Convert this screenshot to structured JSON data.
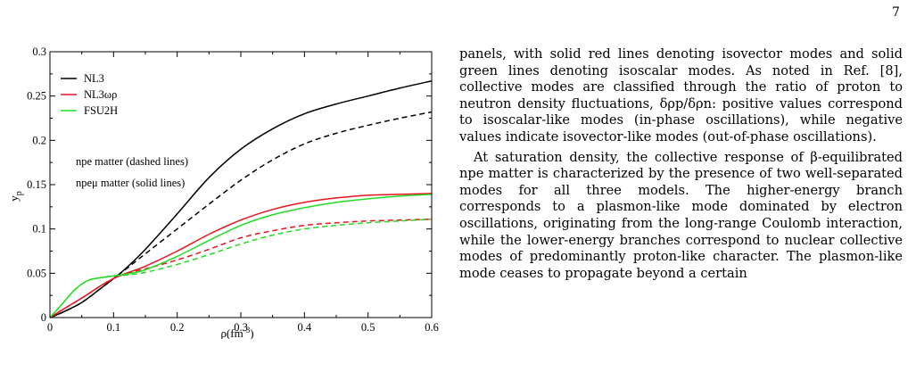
{
  "page_number": "7",
  "body_text": {
    "paragraph_1": "panels, with solid red lines denoting isovector modes and solid green lines denoting isoscalar modes. As noted in Ref. [8], collective modes are classified through the ratio of proton to neutron density fluctuations, δρp/δρn: positive values correspond to isoscalar-like modes (in-phase oscillations), while negative values indicate isovector-like modes (out-of-phase oscillations).",
    "paragraph_2": "At saturation density, the collective response of β-equilibrated npe matter is characterized by the presence of two well-separated modes for all three models. The higher-energy branch corresponds to a plasmon-like mode dominated by electron oscillations, originating from the long-range Coulomb interaction, while the lower-energy branches correspond to nuclear collective modes of predominantly proton-like character. The plasmon-like mode ceases to propagate beyond a certain"
  },
  "chart_data": {
    "type": "line",
    "xlabel": "ρ(fm⁻³)",
    "ylabel": "yp",
    "xlim": [
      0,
      0.6
    ],
    "ylim": [
      0,
      0.3
    ],
    "xticks": [
      "0",
      "0.1",
      "0.2",
      "0.3",
      "0.4",
      "0.5",
      "0.6"
    ],
    "yticks": [
      "0",
      "0.05",
      "0.1",
      "0.15",
      "0.2",
      "0.25",
      "0.3"
    ],
    "grid": false,
    "legend_position": "top-left",
    "legend": [
      {
        "label": "NL3",
        "color": "#000000"
      },
      {
        "label": "NL3ωρ",
        "color": "#e8141c"
      },
      {
        "label": "FSU2H",
        "color": "#22dd22"
      }
    ],
    "annotations": [
      "npe matter (dashed lines)",
      "npeμ matter (solid lines)"
    ],
    "series": [
      {
        "model": "NL3",
        "matter": "npeμ",
        "color": "#000000",
        "dashed": false,
        "x": [
          0,
          0.02,
          0.05,
          0.08,
          0.1,
          0.12,
          0.15,
          0.2,
          0.25,
          0.3,
          0.35,
          0.4,
          0.45,
          0.5,
          0.55,
          0.6
        ],
        "y": [
          0,
          0.006,
          0.017,
          0.033,
          0.044,
          0.056,
          0.077,
          0.117,
          0.158,
          0.19,
          0.213,
          0.23,
          0.241,
          0.25,
          0.259,
          0.267
        ]
      },
      {
        "model": "NL3",
        "matter": "npe",
        "color": "#000000",
        "dashed": true,
        "x": [
          0,
          0.02,
          0.05,
          0.08,
          0.1,
          0.12,
          0.15,
          0.2,
          0.25,
          0.3,
          0.35,
          0.4,
          0.45,
          0.5,
          0.55,
          0.6
        ],
        "y": [
          0,
          0.006,
          0.017,
          0.033,
          0.044,
          0.055,
          0.072,
          0.1,
          0.128,
          0.155,
          0.178,
          0.196,
          0.208,
          0.217,
          0.225,
          0.232
        ]
      },
      {
        "model": "NL3ωρ",
        "matter": "npeμ",
        "color": "#e8141c",
        "dashed": false,
        "x": [
          0,
          0.02,
          0.05,
          0.08,
          0.1,
          0.12,
          0.15,
          0.2,
          0.25,
          0.3,
          0.35,
          0.4,
          0.45,
          0.5,
          0.55,
          0.6
        ],
        "y": [
          0,
          0.009,
          0.022,
          0.036,
          0.044,
          0.05,
          0.058,
          0.075,
          0.094,
          0.11,
          0.122,
          0.13,
          0.135,
          0.138,
          0.139,
          0.14
        ]
      },
      {
        "model": "NL3ωρ",
        "matter": "npe",
        "color": "#e8141c",
        "dashed": true,
        "x": [
          0,
          0.02,
          0.05,
          0.08,
          0.1,
          0.12,
          0.15,
          0.2,
          0.25,
          0.3,
          0.35,
          0.4,
          0.45,
          0.5,
          0.55,
          0.6
        ],
        "y": [
          0,
          0.009,
          0.022,
          0.036,
          0.044,
          0.05,
          0.055,
          0.065,
          0.077,
          0.09,
          0.098,
          0.104,
          0.107,
          0.109,
          0.11,
          0.111
        ]
      },
      {
        "model": "FSU2H",
        "matter": "npeμ",
        "color": "#22dd22",
        "dashed": false,
        "x": [
          0,
          0.02,
          0.04,
          0.06,
          0.08,
          0.1,
          0.12,
          0.15,
          0.2,
          0.25,
          0.3,
          0.35,
          0.4,
          0.45,
          0.5,
          0.55,
          0.6
        ],
        "y": [
          0,
          0.016,
          0.032,
          0.042,
          0.045,
          0.047,
          0.049,
          0.054,
          0.069,
          0.087,
          0.104,
          0.116,
          0.124,
          0.13,
          0.134,
          0.137,
          0.139
        ]
      },
      {
        "model": "FSU2H",
        "matter": "npe",
        "color": "#22dd22",
        "dashed": true,
        "x": [
          0,
          0.02,
          0.04,
          0.06,
          0.08,
          0.1,
          0.12,
          0.15,
          0.2,
          0.25,
          0.3,
          0.35,
          0.4,
          0.45,
          0.5,
          0.55,
          0.6
        ],
        "y": [
          0,
          0.016,
          0.032,
          0.042,
          0.045,
          0.047,
          0.048,
          0.051,
          0.06,
          0.071,
          0.083,
          0.093,
          0.1,
          0.104,
          0.107,
          0.109,
          0.111
        ]
      }
    ]
  }
}
